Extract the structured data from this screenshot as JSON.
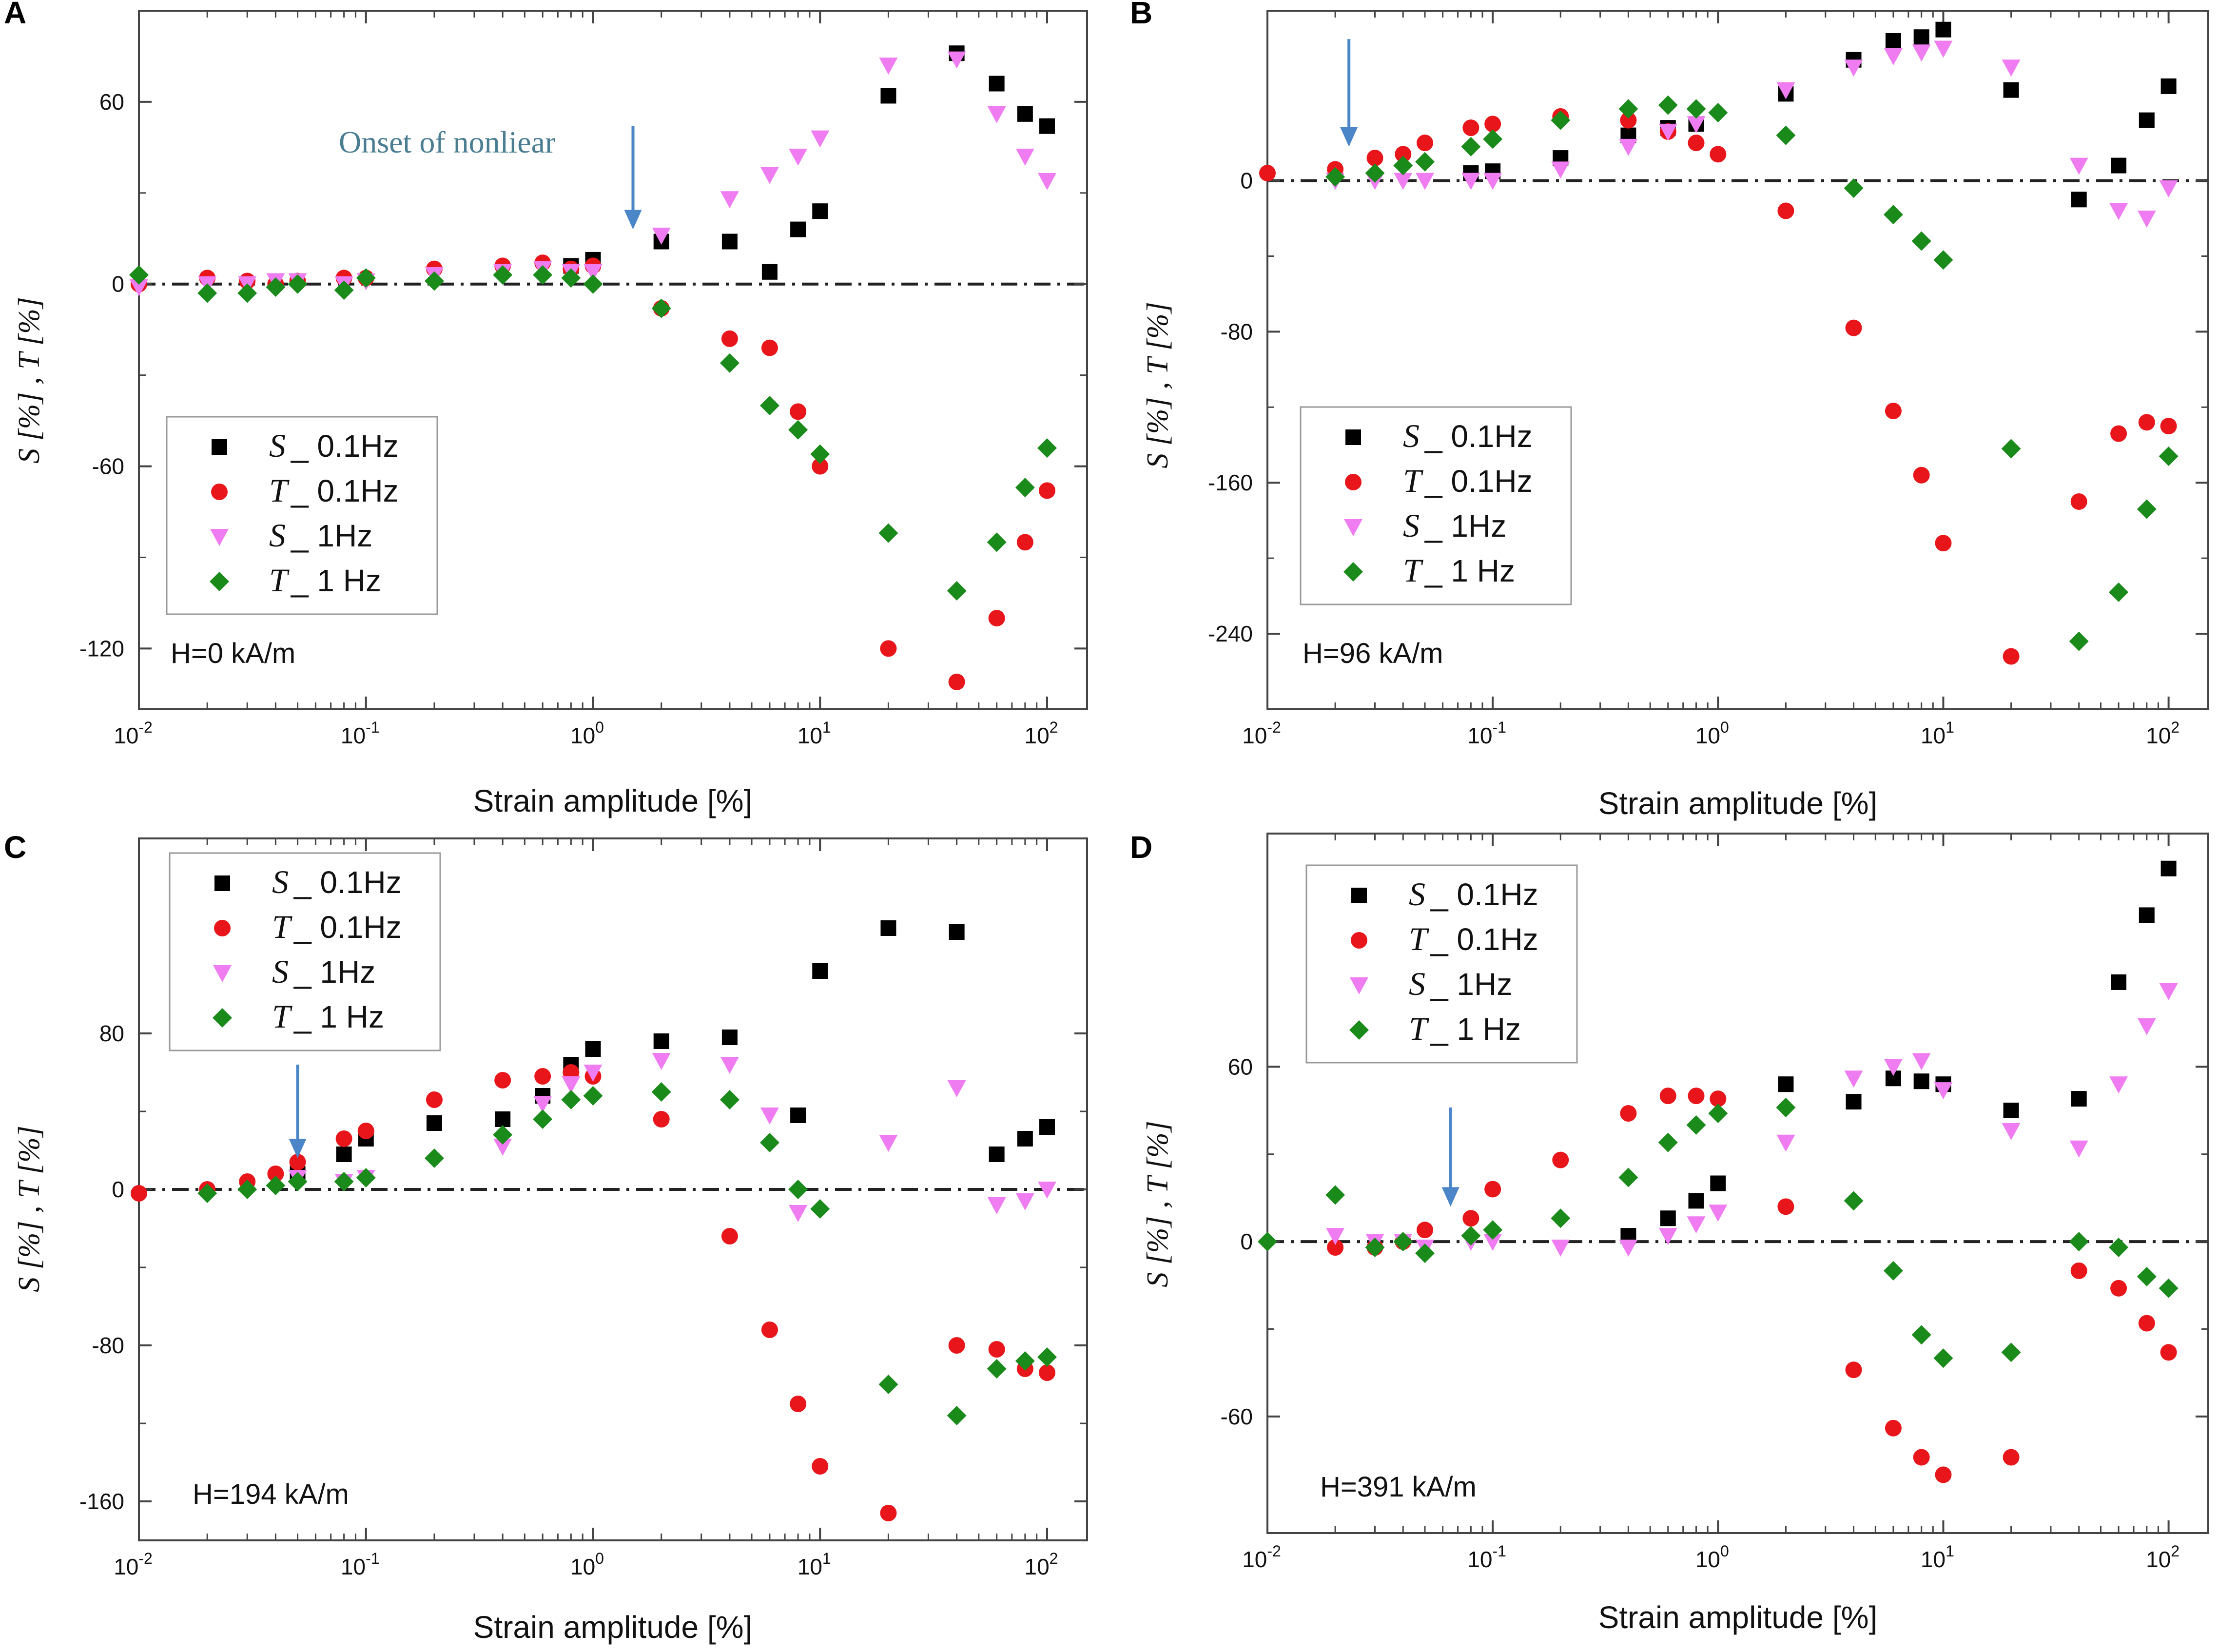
{
  "colors": {
    "S_01": "#000000",
    "T_01": "#e8161b",
    "S_1": "#f07cf2",
    "T_1": "#1a8a1a",
    "arrow": "#4a86c8",
    "annotation": "#4a7d92"
  },
  "chart_data": [
    {
      "panel": "A",
      "type": "scatter",
      "xscale": "log",
      "xlabel": "Strain amplitude [%]",
      "ylabel": "S [%] , T [%]",
      "field_label": "H=0 kA/m",
      "xlim": [
        0.01,
        150
      ],
      "ylim": [
        -140,
        90
      ],
      "yticks": [
        -120,
        -60,
        0,
        60
      ],
      "annotation": {
        "text": "Onset of nonliear",
        "x": 1.5
      },
      "arrow": {
        "x": 1.5,
        "y_from": 52,
        "y_to": 18
      },
      "legend": [
        {
          "key": "S_01",
          "symbol": "S",
          "text": "_ 0.1Hz",
          "marker": "square"
        },
        {
          "key": "T_01",
          "symbol": "T",
          "text": "_ 0.1Hz",
          "marker": "circle"
        },
        {
          "key": "S_1",
          "symbol": "S",
          "text": "_ 1Hz",
          "marker": "triangle"
        },
        {
          "key": "T_1",
          "symbol": "T",
          "text": "_ 1 Hz",
          "marker": "diamond"
        }
      ],
      "series": [
        {
          "key": "S_01",
          "x": [
            0.8,
            1,
            2,
            4,
            6,
            8,
            10,
            20,
            40,
            60,
            80,
            100
          ],
          "y": [
            6,
            8,
            14,
            14,
            4,
            18,
            24,
            62,
            76,
            66,
            56,
            52
          ]
        },
        {
          "key": "T_01",
          "x": [
            0.01,
            0.02,
            0.03,
            0.04,
            0.05,
            0.08,
            0.1,
            0.2,
            0.4,
            0.6,
            0.8,
            1,
            2,
            4,
            6,
            8,
            10,
            20,
            40,
            60,
            80,
            100
          ],
          "y": [
            0,
            2,
            1,
            0,
            1,
            2,
            2,
            5,
            6,
            7,
            5,
            6,
            -8,
            -18,
            -21,
            -42,
            -60,
            -120,
            -131,
            -110,
            -85,
            -68
          ]
        },
        {
          "key": "S_1",
          "x": [
            0.01,
            0.02,
            0.03,
            0.04,
            0.05,
            0.08,
            0.1,
            0.2,
            0.4,
            0.6,
            0.8,
            1,
            2,
            4,
            6,
            8,
            10,
            20,
            40,
            60,
            80,
            100
          ],
          "y": [
            -1,
            0,
            0,
            1,
            1,
            0,
            1,
            3,
            4,
            5,
            4,
            4,
            16,
            28,
            36,
            42,
            48,
            72,
            74,
            56,
            42,
            34
          ]
        },
        {
          "key": "T_1",
          "x": [
            0.01,
            0.02,
            0.03,
            0.04,
            0.05,
            0.08,
            0.1,
            0.2,
            0.4,
            0.6,
            0.8,
            1,
            2,
            4,
            6,
            8,
            10,
            20,
            40,
            60,
            80,
            100
          ],
          "y": [
            3,
            -3,
            -3,
            -1,
            0,
            -2,
            2,
            1,
            3,
            3,
            2,
            0,
            -8,
            -26,
            -40,
            -48,
            -56,
            -82,
            -101,
            -85,
            -67,
            -54
          ]
        }
      ]
    },
    {
      "panel": "B",
      "type": "scatter",
      "xscale": "log",
      "xlabel": "Strain amplitude [%]",
      "ylabel": "S [%] , T [%]",
      "field_label": "H=96 kA/m",
      "xlim": [
        0.01,
        150
      ],
      "ylim": [
        -280,
        90
      ],
      "yticks": [
        -240,
        -160,
        -80,
        0
      ],
      "arrow": {
        "x": 0.023,
        "y_from": 75,
        "y_to": 18
      },
      "legend": [
        {
          "key": "S_01",
          "symbol": "S",
          "text": "_ 0.1Hz",
          "marker": "square"
        },
        {
          "key": "T_01",
          "symbol": "T",
          "text": "_ 0.1Hz",
          "marker": "circle"
        },
        {
          "key": "S_1",
          "symbol": "S",
          "text": "_ 1Hz",
          "marker": "triangle"
        },
        {
          "key": "T_1",
          "symbol": "T",
          "text": "_ 1 Hz",
          "marker": "diamond"
        }
      ],
      "series": [
        {
          "key": "S_01",
          "x": [
            0.08,
            0.1,
            0.2,
            0.4,
            0.6,
            0.8,
            2,
            4,
            6,
            8,
            10,
            20,
            40,
            60,
            80,
            100
          ],
          "y": [
            4,
            5,
            12,
            24,
            28,
            30,
            46,
            64,
            74,
            76,
            80,
            48,
            -10,
            8,
            32,
            50
          ]
        },
        {
          "key": "T_01",
          "x": [
            0.01,
            0.02,
            0.03,
            0.04,
            0.05,
            0.08,
            0.1,
            0.2,
            0.4,
            0.6,
            0.8,
            1,
            2,
            4,
            6,
            8,
            10,
            20,
            40,
            60,
            80,
            100
          ],
          "y": [
            4,
            6,
            12,
            14,
            20,
            28,
            30,
            34,
            32,
            26,
            20,
            14,
            -16,
            -78,
            -122,
            -156,
            -192,
            -252,
            -170,
            -134,
            -128,
            -130
          ]
        },
        {
          "key": "S_1",
          "x": [
            0.02,
            0.03,
            0.04,
            0.05,
            0.08,
            0.1,
            0.2,
            0.4,
            0.6,
            0.8,
            2,
            4,
            6,
            8,
            10,
            20,
            40,
            60,
            80,
            100
          ],
          "y": [
            0,
            0,
            0,
            0,
            0,
            0,
            6,
            18,
            26,
            30,
            48,
            60,
            66,
            68,
            70,
            60,
            8,
            -16,
            -20,
            -4
          ]
        },
        {
          "key": "T_1",
          "x": [
            0.02,
            0.03,
            0.04,
            0.05,
            0.08,
            0.1,
            0.2,
            0.4,
            0.6,
            0.8,
            1,
            2,
            4,
            6,
            8,
            10,
            20,
            40,
            60,
            80,
            100
          ],
          "y": [
            2,
            4,
            8,
            10,
            18,
            22,
            32,
            38,
            40,
            38,
            36,
            24,
            -4,
            -18,
            -32,
            -42,
            -142,
            -244,
            -218,
            -174,
            -146
          ]
        }
      ]
    },
    {
      "panel": "C",
      "type": "scatter",
      "xscale": "log",
      "xlabel": "Strain amplitude [%]",
      "ylabel": "S [%] , T [%]",
      "field_label": "H=194 kA/m",
      "xlim": [
        0.01,
        150
      ],
      "ylim": [
        -180,
        180
      ],
      "yticks": [
        -160,
        -80,
        0,
        80
      ],
      "arrow": {
        "x": 0.05,
        "y_from": 64,
        "y_to": 16
      },
      "legend": [
        {
          "key": "S_01",
          "symbol": "S",
          "text": "_ 0.1Hz",
          "marker": "square"
        },
        {
          "key": "T_01",
          "symbol": "T",
          "text": "_ 0.1Hz",
          "marker": "circle"
        },
        {
          "key": "S_1",
          "symbol": "S",
          "text": "_ 1Hz",
          "marker": "triangle"
        },
        {
          "key": "T_1",
          "symbol": "T",
          "text": "_ 1 Hz",
          "marker": "diamond"
        }
      ],
      "series": [
        {
          "key": "S_01",
          "x": [
            0.05,
            0.08,
            0.1,
            0.2,
            0.4,
            0.6,
            0.8,
            1,
            2,
            4,
            8,
            10,
            20,
            40,
            60,
            80,
            100
          ],
          "y": [
            8,
            18,
            26,
            34,
            36,
            48,
            64,
            72,
            76,
            78,
            38,
            112,
            134,
            132,
            18,
            26,
            32
          ]
        },
        {
          "key": "T_01",
          "x": [
            0.01,
            0.02,
            0.03,
            0.04,
            0.05,
            0.08,
            0.1,
            0.2,
            0.4,
            0.6,
            0.8,
            1,
            2,
            4,
            6,
            8,
            10,
            20,
            40,
            60,
            80,
            100
          ],
          "y": [
            -2,
            0,
            4,
            8,
            14,
            26,
            30,
            46,
            56,
            58,
            60,
            58,
            36,
            -24,
            -72,
            -110,
            -142,
            -166,
            -80,
            -82,
            -92,
            -94
          ]
        },
        {
          "key": "S_1",
          "x": [
            0.05,
            0.08,
            0.1,
            0.4,
            0.6,
            0.8,
            1,
            2,
            4,
            6,
            8,
            20,
            40,
            60,
            80,
            100
          ],
          "y": [
            6,
            4,
            6,
            22,
            44,
            54,
            60,
            66,
            64,
            38,
            -12,
            24,
            52,
            -8,
            -6,
            0
          ]
        },
        {
          "key": "T_1",
          "x": [
            0.02,
            0.03,
            0.04,
            0.05,
            0.08,
            0.1,
            0.2,
            0.4,
            0.6,
            0.8,
            1,
            2,
            4,
            6,
            8,
            10,
            20,
            40,
            60,
            80,
            100
          ],
          "y": [
            -2,
            0,
            2,
            4,
            4,
            6,
            16,
            28,
            36,
            46,
            48,
            50,
            46,
            24,
            0,
            -10,
            -100,
            -116,
            -92,
            -88,
            -86
          ]
        }
      ]
    },
    {
      "panel": "D",
      "type": "scatter",
      "xscale": "log",
      "xlabel": "Strain amplitude [%]",
      "ylabel": "S [%] , T [%]",
      "field_label": "H=391 kA/m",
      "xlim": [
        0.01,
        150
      ],
      "ylim": [
        -100,
        140
      ],
      "yticks": [
        -60,
        0,
        60
      ],
      "arrow": {
        "x": 0.065,
        "y_from": 46,
        "y_to": 12
      },
      "legend": [
        {
          "key": "S_01",
          "symbol": "S",
          "text": "_ 0.1Hz",
          "marker": "square"
        },
        {
          "key": "T_01",
          "symbol": "T",
          "text": "_ 0.1Hz",
          "marker": "circle"
        },
        {
          "key": "S_1",
          "symbol": "S",
          "text": "_ 1Hz",
          "marker": "triangle"
        },
        {
          "key": "T_1",
          "symbol": "T",
          "text": "_ 1 Hz",
          "marker": "diamond"
        }
      ],
      "series": [
        {
          "key": "S_01",
          "x": [
            0.4,
            0.6,
            0.8,
            1,
            2,
            4,
            6,
            8,
            10,
            20,
            40,
            60,
            80,
            100
          ],
          "y": [
            2,
            8,
            14,
            20,
            54,
            48,
            56,
            55,
            54,
            45,
            49,
            89,
            112,
            128
          ]
        },
        {
          "key": "T_01",
          "x": [
            0.02,
            0.03,
            0.04,
            0.05,
            0.08,
            0.1,
            0.2,
            0.4,
            0.6,
            0.8,
            1,
            2,
            4,
            6,
            8,
            10,
            20,
            40,
            60,
            80,
            100
          ],
          "y": [
            -2,
            -2,
            0,
            4,
            8,
            18,
            28,
            44,
            50,
            50,
            49,
            12,
            -44,
            -64,
            -74,
            -80,
            -74,
            -10,
            -16,
            -28,
            -38
          ]
        },
        {
          "key": "S_1",
          "x": [
            0.02,
            0.03,
            0.04,
            0.05,
            0.08,
            0.1,
            0.2,
            0.4,
            0.6,
            0.8,
            1,
            2,
            4,
            6,
            8,
            10,
            20,
            40,
            60,
            80,
            100
          ],
          "y": [
            2,
            0,
            0,
            -2,
            0,
            0,
            -2,
            -2,
            2,
            6,
            10,
            34,
            56,
            60,
            62,
            52,
            38,
            32,
            54,
            74,
            86
          ]
        },
        {
          "key": "T_1",
          "x": [
            0.01,
            0.02,
            0.03,
            0.04,
            0.05,
            0.08,
            0.1,
            0.2,
            0.4,
            0.6,
            0.8,
            1,
            2,
            4,
            6,
            8,
            10,
            20,
            40,
            60,
            80,
            100
          ],
          "y": [
            0,
            16,
            -2,
            0,
            -4,
            2,
            4,
            8,
            22,
            34,
            40,
            44,
            46,
            14,
            -10,
            -32,
            -40,
            -38,
            0,
            -2,
            -12,
            -16
          ]
        }
      ]
    }
  ]
}
